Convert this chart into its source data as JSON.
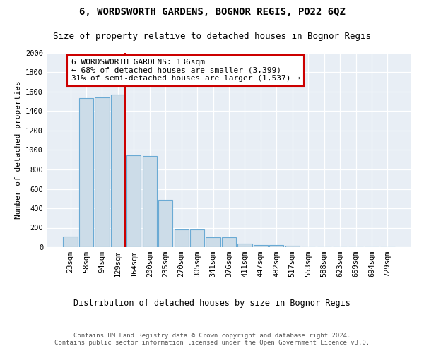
{
  "title": "6, WORDSWORTH GARDENS, BOGNOR REGIS, PO22 6QZ",
  "subtitle": "Size of property relative to detached houses in Bognor Regis",
  "xlabel": "Distribution of detached houses by size in Bognor Regis",
  "ylabel": "Number of detached properties",
  "categories": [
    "23sqm",
    "58sqm",
    "94sqm",
    "129sqm",
    "164sqm",
    "200sqm",
    "235sqm",
    "270sqm",
    "305sqm",
    "341sqm",
    "376sqm",
    "411sqm",
    "447sqm",
    "482sqm",
    "517sqm",
    "553sqm",
    "588sqm",
    "623sqm",
    "659sqm",
    "694sqm",
    "729sqm"
  ],
  "values": [
    110,
    1535,
    1540,
    1570,
    945,
    940,
    490,
    180,
    180,
    100,
    100,
    40,
    25,
    20,
    15,
    0,
    0,
    0,
    0,
    0,
    0
  ],
  "bar_color": "#ccdce8",
  "bar_edge_color": "#6aaad4",
  "vline_color": "#cc0000",
  "annotation_text": "6 WORDSWORTH GARDENS: 136sqm\n← 68% of detached houses are smaller (3,399)\n31% of semi-detached houses are larger (1,537) →",
  "annotation_box_color": "white",
  "annotation_box_edge_color": "#cc0000",
  "ylim": [
    0,
    2000
  ],
  "yticks": [
    0,
    200,
    400,
    600,
    800,
    1000,
    1200,
    1400,
    1600,
    1800,
    2000
  ],
  "background_color": "#e8eef5",
  "footer": "Contains HM Land Registry data © Crown copyright and database right 2024.\nContains public sector information licensed under the Open Government Licence v3.0.",
  "title_fontsize": 10,
  "subtitle_fontsize": 9,
  "xlabel_fontsize": 8.5,
  "ylabel_fontsize": 8,
  "tick_fontsize": 7.5,
  "annotation_fontsize": 8,
  "footer_fontsize": 6.5
}
